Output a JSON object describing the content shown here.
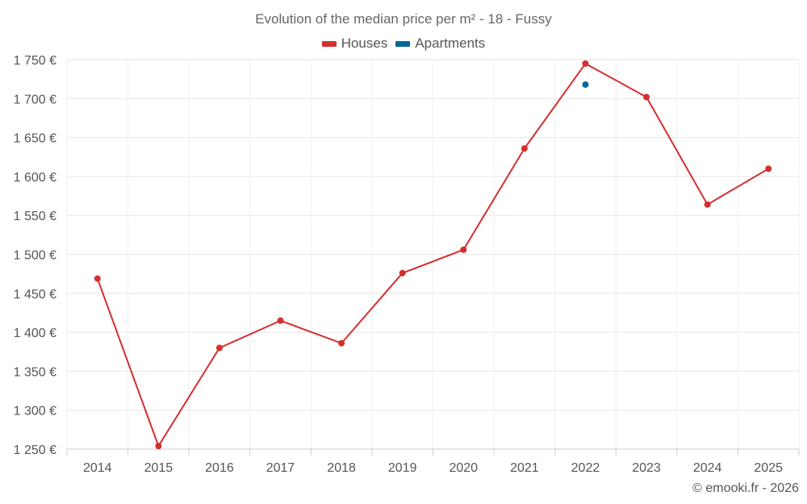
{
  "chart_data": {
    "type": "line",
    "title": "Evolution of the median price per m² - 18 - Fussy",
    "categories": [
      "2014",
      "2015",
      "2016",
      "2017",
      "2018",
      "2019",
      "2020",
      "2021",
      "2022",
      "2023",
      "2024",
      "2025"
    ],
    "series": [
      {
        "name": "Houses",
        "color": "#d32f2f",
        "values": [
          1469,
          1254,
          1380,
          1415,
          1386,
          1476,
          1506,
          1636,
          1745,
          1702,
          1564,
          1610
        ]
      },
      {
        "name": "Apartments",
        "color": "#01689b",
        "values": [
          null,
          null,
          null,
          null,
          null,
          null,
          null,
          null,
          1718,
          null,
          null,
          null
        ]
      }
    ],
    "ylim": [
      1250,
      1750
    ],
    "yticks": [
      1250,
      1300,
      1350,
      1400,
      1450,
      1500,
      1550,
      1600,
      1650,
      1700,
      1750
    ],
    "ytick_labels": [
      "1 250 €",
      "1 300 €",
      "1 350 €",
      "1 400 €",
      "1 450 €",
      "1 500 €",
      "1 550 €",
      "1 600 €",
      "1 650 €",
      "1 700 €",
      "1 750 €"
    ],
    "xlabel": "",
    "ylabel": "",
    "grid": true,
    "legend_position": "top-center"
  },
  "credit": "© emooki.fr - 2026"
}
